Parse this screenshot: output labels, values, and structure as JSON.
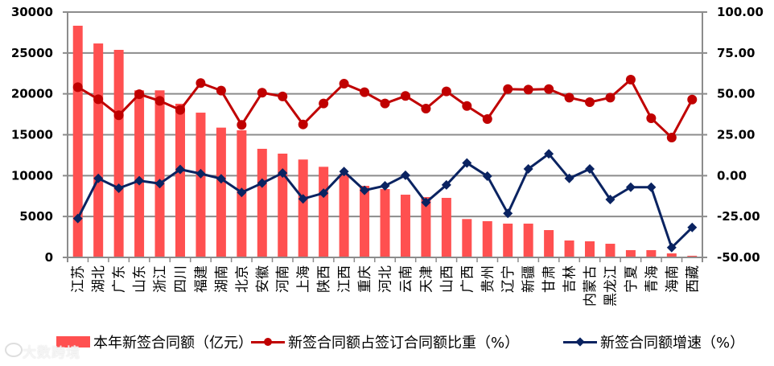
{
  "chart_data": {
    "type": "bar+line",
    "title": "",
    "categories": [
      "江苏",
      "湖北",
      "广东",
      "山东",
      "浙江",
      "四川",
      "福建",
      "湖南",
      "北京",
      "安徽",
      "河南",
      "上海",
      "陕西",
      "江西",
      "重庆",
      "河北",
      "云南",
      "天津",
      "山西",
      "广西",
      "贵州",
      "辽宁",
      "新疆",
      "甘肃",
      "吉林",
      "内蒙古",
      "黑龙江",
      "宁夏",
      "青海",
      "海南",
      "西藏"
    ],
    "series": [
      {
        "name": "本年新签合同额（亿元）",
        "type": "bar",
        "axis": "left",
        "color": "#ff5050",
        "values": [
          28330,
          26160,
          25380,
          20430,
          20430,
          18790,
          17700,
          15870,
          15540,
          13280,
          12690,
          11970,
          11080,
          10230,
          8750,
          8360,
          7670,
          7380,
          7280,
          4690,
          4430,
          4130,
          4130,
          3340,
          2070,
          1970,
          1670,
          890,
          890,
          490,
          200
        ]
      },
      {
        "name": "新签合同额占签订合同额比重（%）",
        "type": "line",
        "axis": "right",
        "color": "#c00000",
        "marker": "circle",
        "values": [
          54.1,
          46.7,
          36.9,
          49.8,
          45.7,
          40.2,
          56.6,
          52.0,
          31.0,
          50.7,
          48.4,
          31.3,
          44.1,
          56.2,
          51.0,
          44.1,
          48.7,
          41.0,
          51.5,
          42.6,
          34.6,
          52.9,
          52.6,
          52.9,
          47.7,
          44.9,
          47.7,
          58.7,
          35.1,
          23.3,
          46.5
        ]
      },
      {
        "name": "新签合同额增速（%）",
        "type": "line",
        "axis": "right",
        "color": "#0a2361",
        "marker": "diamond",
        "values": [
          -26.2,
          -1.7,
          -7.7,
          -3.1,
          -4.9,
          3.8,
          1.2,
          -1.9,
          -10.3,
          -4.6,
          1.6,
          -14.2,
          -10.7,
          2.5,
          -9.0,
          -6.2,
          0.2,
          -16.4,
          -5.7,
          7.7,
          -0.3,
          -23.1,
          4.1,
          13.3,
          -1.7,
          4.1,
          -14.6,
          -7.1,
          -7.1,
          -44.0,
          -31.7
        ]
      }
    ],
    "left_axis": {
      "ylim": [
        0,
        30000
      ],
      "ticks": [
        "0",
        "5000",
        "10000",
        "15000",
        "20000",
        "25000",
        "30000"
      ]
    },
    "right_axis": {
      "ylim": [
        -50,
        100
      ],
      "ticks": [
        "-50.00",
        "-25.00",
        "0.00",
        "25.00",
        "50.00",
        "75.00",
        "100.00"
      ]
    },
    "xlabel": "",
    "ylabel": "",
    "grid": true,
    "legend_position": "bottom"
  },
  "legend": {
    "bar_label": "本年新签合同额（亿元）",
    "ratio_label": "新签合同额占签订合同额比重（%）",
    "growth_label": "新签合同额增速（%）"
  },
  "watermark": {
    "text": "大数跨境"
  }
}
